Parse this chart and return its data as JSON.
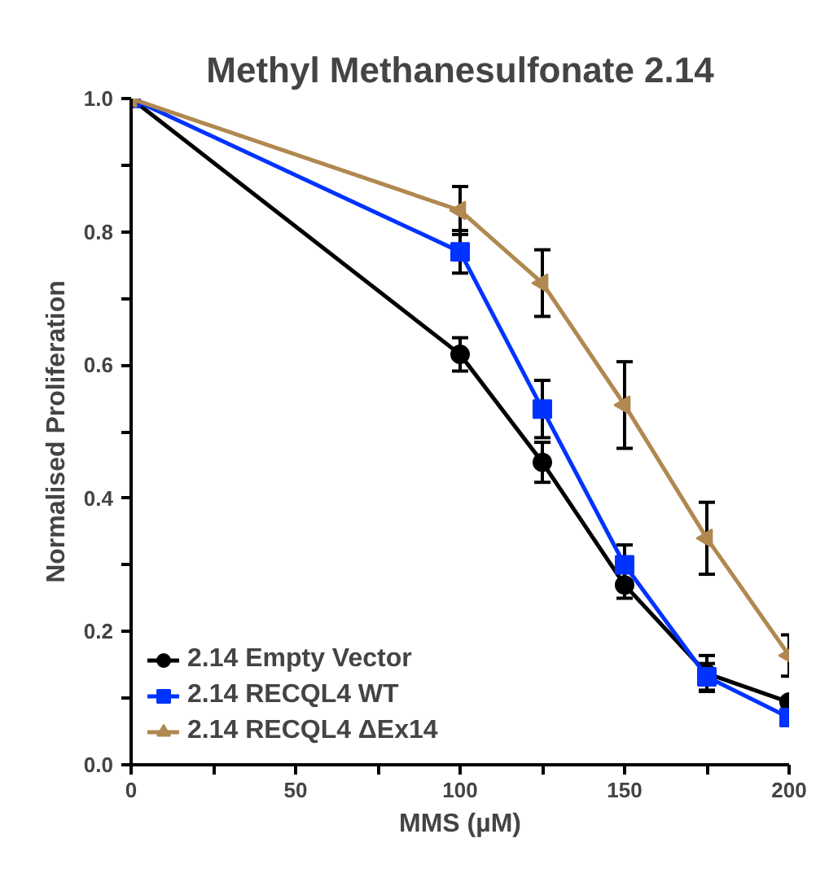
{
  "chart_data": {
    "type": "line",
    "title": "Methyl Methanesulfonate 2.14",
    "xlabel": "MMS (µM)",
    "ylabel": "Normalised Proliferation",
    "x": [
      0,
      100,
      125,
      150,
      175,
      200
    ],
    "series": [
      {
        "name": "2.14 Empty Vector",
        "color": "#000000",
        "marker": "circle",
        "values": [
          1.0,
          0.616,
          0.454,
          0.27,
          0.137,
          0.094
        ],
        "errors": [
          null,
          0.025,
          0.03,
          0.02,
          0.027,
          null
        ]
      },
      {
        "name": "2.14 RECQL4 WT",
        "color": "#0033ff",
        "marker": "square",
        "values": [
          1.0,
          0.77,
          0.534,
          0.3,
          0.132,
          0.071
        ],
        "errors": [
          null,
          0.032,
          0.043,
          0.03,
          0.02,
          null
        ]
      },
      {
        "name": "2.14 RECQL4 ΔEx14",
        "color": "#b08850",
        "marker": "triangle",
        "values": [
          1.0,
          0.832,
          0.723,
          0.54,
          0.34,
          0.164
        ],
        "errors": [
          null,
          0.036,
          0.05,
          0.065,
          0.054,
          0.031
        ]
      }
    ],
    "xlim": [
      0,
      200
    ],
    "xticks": [
      0,
      {
        "value": 25,
        "label": null
      },
      50,
      {
        "value": 75,
        "label": null
      },
      100,
      {
        "value": 125,
        "label": null
      },
      150,
      {
        "value": 175,
        "label": null
      },
      200
    ],
    "ylim": [
      0,
      1.0
    ],
    "yticks": [
      {
        "value": 0,
        "label": "0.0"
      },
      {
        "value": 0.1,
        "label": null
      },
      {
        "value": 0.2,
        "label": "0.2"
      },
      {
        "value": 0.3,
        "label": null
      },
      {
        "value": 0.4,
        "label": "0.4"
      },
      {
        "value": 0.5,
        "label": null
      },
      {
        "value": 0.6,
        "label": "0.6"
      },
      {
        "value": 0.7,
        "label": null
      },
      {
        "value": 0.8,
        "label": "0.8"
      },
      {
        "value": 0.9,
        "label": null
      },
      {
        "value": 1.0,
        "label": "1.0"
      }
    ],
    "grid": false,
    "legend": "bottom left",
    "line_style": "solid"
  }
}
